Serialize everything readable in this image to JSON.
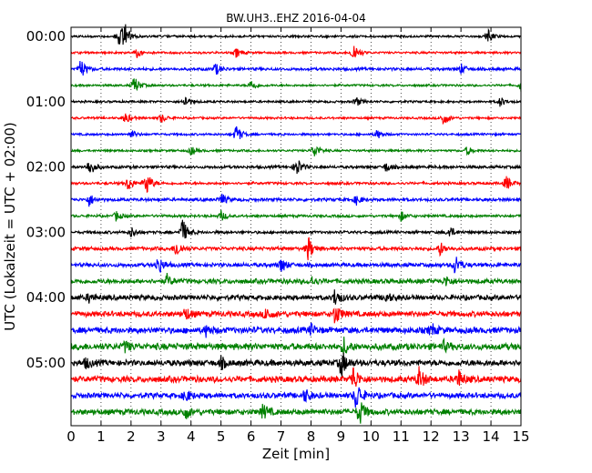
{
  "chart_data": {
    "type": "line",
    "title": "BW.UH3..EHZ 2016-04-04",
    "xlabel": "Zeit  [min]",
    "ylabel": "UTC (Lokalzeit = UTC + 02:00)",
    "xlim": [
      0,
      15
    ],
    "x_ticks": [
      "0",
      "1",
      "2",
      "3",
      "4",
      "5",
      "6",
      "7",
      "8",
      "9",
      "10",
      "11",
      "12",
      "13",
      "14",
      "15"
    ],
    "y_ticks": [
      "00:00",
      "01:00",
      "02:00",
      "03:00",
      "04:00",
      "05:00"
    ],
    "grid": "vertical-dotted",
    "trace_interval_min": 15,
    "colors": [
      "#000000",
      "#ff0000",
      "#0000ff",
      "#008000"
    ],
    "series": [
      {
        "start": "00:00",
        "amp": 1.0,
        "events": [
          [
            1.6,
            4.0
          ],
          [
            1.8,
            3.0
          ],
          [
            13.9,
            2.0
          ]
        ]
      },
      {
        "start": "00:15",
        "amp": 1.0,
        "events": [
          [
            9.4,
            3.5
          ],
          [
            2.2,
            1.5
          ],
          [
            5.5,
            1.5
          ]
        ]
      },
      {
        "start": "00:30",
        "amp": 1.3,
        "events": [
          [
            0.3,
            3.5
          ],
          [
            4.8,
            2.0
          ],
          [
            13.0,
            1.6
          ]
        ]
      },
      {
        "start": "00:45",
        "amp": 1.0,
        "events": [
          [
            2.1,
            3.0
          ],
          [
            6.0,
            2.0
          ],
          [
            15.0,
            2.0
          ]
        ]
      },
      {
        "start": "01:00",
        "amp": 1.0,
        "events": [
          [
            3.8,
            2.0
          ],
          [
            9.5,
            1.6
          ],
          [
            14.3,
            1.6
          ]
        ]
      },
      {
        "start": "01:15",
        "amp": 1.0,
        "events": [
          [
            1.8,
            1.8
          ],
          [
            12.4,
            2.5
          ],
          [
            3.0,
            1.5
          ]
        ]
      },
      {
        "start": "01:30",
        "amp": 1.0,
        "events": [
          [
            5.5,
            3.2
          ],
          [
            10.2,
            1.5
          ],
          [
            2.0,
            1.4
          ]
        ]
      },
      {
        "start": "01:45",
        "amp": 1.0,
        "events": [
          [
            8.1,
            2.5
          ],
          [
            4.0,
            1.5
          ],
          [
            13.2,
            1.4
          ]
        ]
      },
      {
        "start": "02:00",
        "amp": 1.3,
        "events": [
          [
            0.6,
            3.0
          ],
          [
            7.5,
            3.5
          ],
          [
            10.5,
            1.6
          ]
        ]
      },
      {
        "start": "02:15",
        "amp": 1.2,
        "events": [
          [
            2.5,
            4.2
          ],
          [
            1.9,
            2.5
          ],
          [
            14.5,
            2.5
          ]
        ]
      },
      {
        "start": "02:30",
        "amp": 1.4,
        "events": [
          [
            0.6,
            2.0
          ],
          [
            5.0,
            2.0
          ],
          [
            9.5,
            1.6
          ]
        ]
      },
      {
        "start": "02:45",
        "amp": 1.2,
        "events": [
          [
            1.5,
            1.5
          ],
          [
            5.0,
            1.6
          ],
          [
            11.0,
            1.5
          ]
        ]
      },
      {
        "start": "03:00",
        "amp": 1.3,
        "events": [
          [
            3.7,
            4.5
          ],
          [
            2.0,
            1.6
          ],
          [
            12.6,
            2.0
          ]
        ]
      },
      {
        "start": "03:15",
        "amp": 1.6,
        "events": [
          [
            3.5,
            3.0
          ],
          [
            7.9,
            4.0
          ],
          [
            12.3,
            2.2
          ]
        ]
      },
      {
        "start": "03:30",
        "amp": 1.8,
        "events": [
          [
            2.9,
            3.2
          ],
          [
            7.0,
            2.4
          ],
          [
            12.8,
            3.4
          ]
        ]
      },
      {
        "start": "03:45",
        "amp": 2.2,
        "events": [
          [
            3.2,
            1.8
          ],
          [
            8.0,
            1.6
          ],
          [
            12.5,
            1.6
          ]
        ]
      },
      {
        "start": "04:00",
        "amp": 2.3,
        "events": [
          [
            8.8,
            3.0
          ],
          [
            0.6,
            1.4
          ],
          [
            10.5,
            1.5
          ]
        ]
      },
      {
        "start": "04:15",
        "amp": 2.5,
        "events": [
          [
            8.8,
            3.5
          ],
          [
            3.8,
            2.2
          ],
          [
            6.5,
            2.2
          ]
        ]
      },
      {
        "start": "04:30",
        "amp": 2.8,
        "events": [
          [
            12.0,
            2.0
          ],
          [
            4.5,
            1.6
          ],
          [
            8.0,
            1.6
          ]
        ]
      },
      {
        "start": "04:45",
        "amp": 3.0,
        "events": [
          [
            9.1,
            2.6
          ],
          [
            1.8,
            1.6
          ],
          [
            12.4,
            1.6
          ]
        ]
      },
      {
        "start": "05:00",
        "amp": 2.8,
        "events": [
          [
            9.0,
            4.5
          ],
          [
            0.5,
            1.6
          ],
          [
            5.0,
            1.6
          ]
        ]
      },
      {
        "start": "05:15",
        "amp": 2.8,
        "events": [
          [
            9.4,
            4.2
          ],
          [
            11.6,
            3.5
          ],
          [
            12.9,
            3.0
          ]
        ]
      },
      {
        "start": "05:30",
        "amp": 2.5,
        "events": [
          [
            9.5,
            5.0
          ],
          [
            7.8,
            2.2
          ],
          [
            3.8,
            2.0
          ]
        ]
      },
      {
        "start": "05:45",
        "amp": 2.6,
        "events": [
          [
            9.6,
            4.5
          ],
          [
            3.8,
            2.2
          ],
          [
            6.4,
            2.5
          ]
        ]
      }
    ]
  }
}
